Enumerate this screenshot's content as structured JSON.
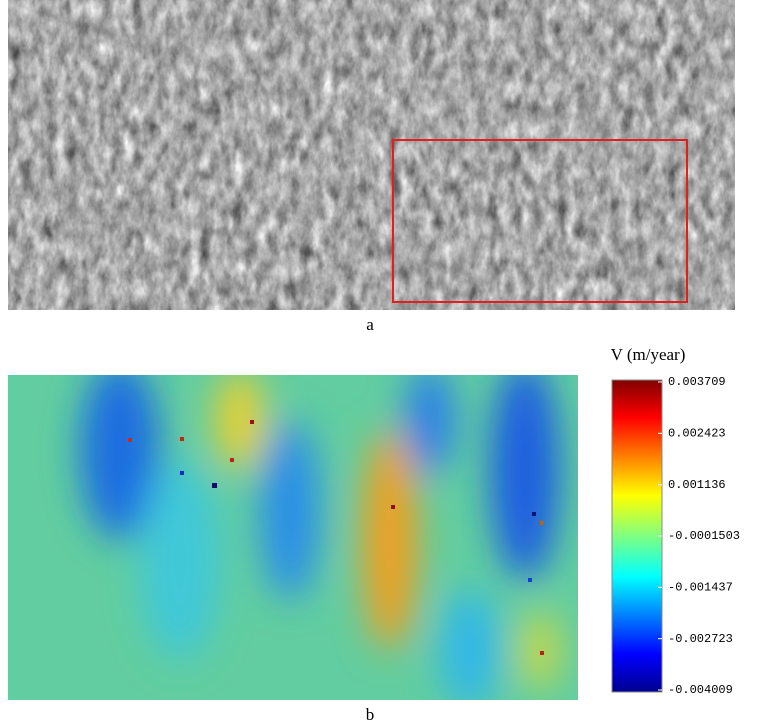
{
  "panels": [
    {
      "label": "a"
    },
    {
      "label": "b"
    }
  ],
  "colorbar": {
    "title": "V (m/year)",
    "range": [
      -0.004009,
      0.003709
    ],
    "ticks": [
      0.003709,
      0.002423,
      0.001136,
      -0.0001503,
      -0.001437,
      -0.002723,
      -0.004009
    ]
  }
}
